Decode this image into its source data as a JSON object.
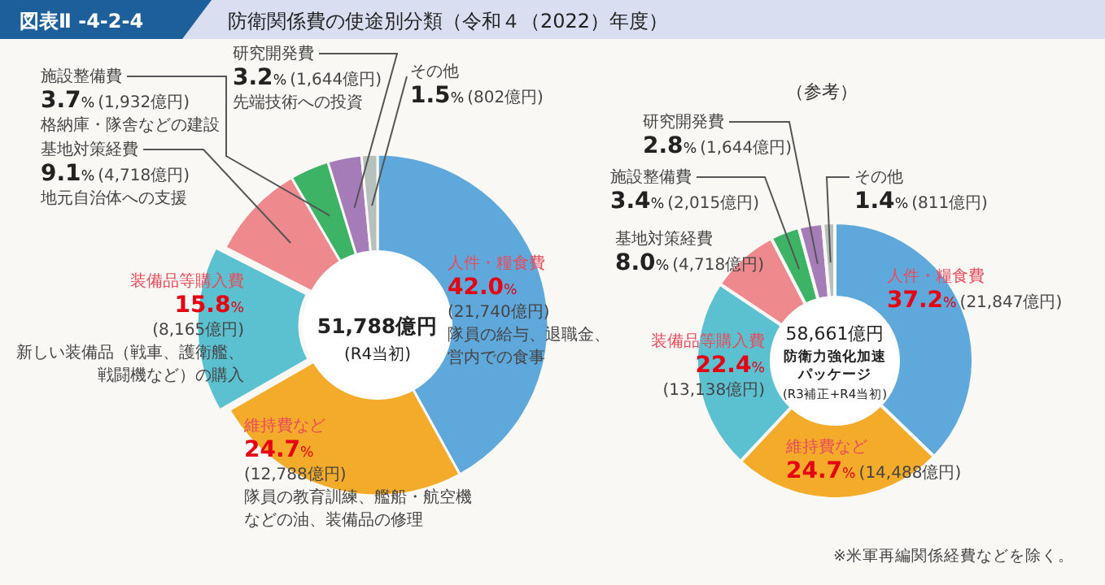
{
  "chart_data": [
    {
      "type": "donut",
      "title": "防衛関係費の使途別分類（令和４（2022）年度）",
      "subtitle": "図表Ⅱ -4-2-4",
      "categories": [
        "人件・糧食費",
        "維持費など",
        "装備品等購入費",
        "基地対策経費",
        "施設整備費",
        "研究開発費",
        "その他"
      ],
      "values": [
        42.0,
        24.7,
        15.8,
        9.1,
        3.7,
        3.2,
        1.5
      ],
      "colors": [
        "#5fa8dc",
        "#f4ab2a",
        "#5bc0d0",
        "#ee8a8e",
        "#3db366",
        "#a57bb8",
        "#b7c0bc"
      ],
      "value_labels": [
        "42.0%",
        "24.7%",
        "15.8%",
        "9.1%",
        "3.7%",
        "3.2%",
        "1.5%"
      ],
      "annotations": [
        "(21,740億円)",
        "隊員の給与、退職金、営内での食事",
        "(12,788億円)",
        "隊員の教育訓練、艦船・航空機などの油、装備品の修理",
        "(8,165億円)",
        "新しい装備品（戦車、護衛艦、戦闘機など）の購入",
        "(4,718億円)",
        "地元自治体への支援",
        "(1,932億円)",
        "格納庫・隊舎などの建設",
        "(1,644億円)",
        "先端技術への投資",
        "(802億円)",
        "51,788億円",
        "(R4当初)"
      ]
    },
    {
      "type": "donut",
      "title": "（参考）",
      "categories": [
        "人件・糧食費",
        "維持費など",
        "装備品等購入費",
        "基地対策経費",
        "施設整備費",
        "研究開発費",
        "その他"
      ],
      "values": [
        37.2,
        24.7,
        22.4,
        8.0,
        3.4,
        2.8,
        1.4
      ],
      "colors": [
        "#5fa8dc",
        "#f4ab2a",
        "#5bc0d0",
        "#ee8a8e",
        "#3db366",
        "#a57bb8",
        "#b7c0bc"
      ],
      "value_labels": [
        "37.2%",
        "24.7%",
        "22.4%",
        "8.0%",
        "3.4%",
        "2.8%",
        "1.4%"
      ],
      "annotations": [
        "(21,847億円)",
        "(14,488億円)",
        "(13,138億円)",
        "(4,718億円)",
        "(2,015億円)",
        "(1,644億円)",
        "(811億円)",
        "58,661億円",
        "防衛力強化加速パッケージ",
        "(R3補正+R4当初)",
        "※米軍再編関係経費などを除く。"
      ]
    }
  ]
}
